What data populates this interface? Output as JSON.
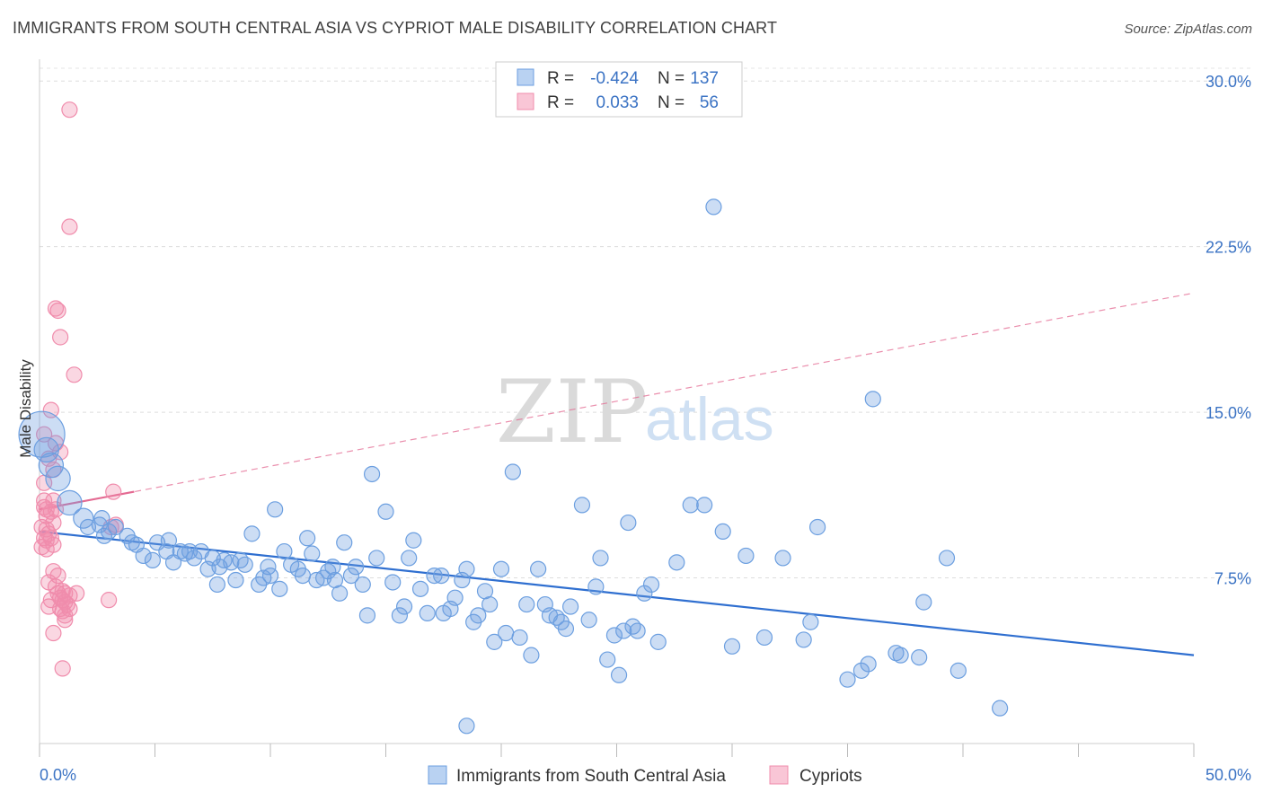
{
  "title": "IMMIGRANTS FROM SOUTH CENTRAL ASIA VS CYPRIOT MALE DISABILITY CORRELATION CHART",
  "source": "Source: ZipAtlas.com",
  "watermark": {
    "zip": "ZIP",
    "atlas": "atlas"
  },
  "colors": {
    "blue": "#6c9fe0",
    "blue_line": "#2f6fd0",
    "pink": "#f08cac",
    "pink_line": "#e46a92",
    "tick": "#3b73c4"
  },
  "legend": {
    "rows": [
      {
        "r_label": "R =",
        "r": "-0.424",
        "n_label": "N =",
        "n": "137",
        "series": "blue"
      },
      {
        "r_label": "R =",
        "r": "0.033",
        "n_label": "N =",
        "n": "56",
        "series": "pink"
      }
    ]
  },
  "bottom_legend": {
    "blue": "Immigrants from South Central Asia",
    "pink": "Cypriots"
  },
  "chart_data": {
    "type": "scatter",
    "xlabel": "",
    "ylabel": "Male Disability",
    "xlim": [
      0,
      50
    ],
    "ylim": [
      0,
      30.7
    ],
    "x_tick_labels": [
      "0.0%",
      "50.0%"
    ],
    "y_ticks": [
      7.5,
      15.0,
      22.5,
      30.0
    ],
    "y_tick_labels": [
      "7.5%",
      "15.0%",
      "22.5%",
      "30.0%"
    ],
    "series": [
      {
        "name": "Immigrants from South Central Asia",
        "color": "blue",
        "trend": {
          "x": [
            0,
            50
          ],
          "y": [
            9.6,
            4.0
          ],
          "style": "solid"
        },
        "points": [
          [
            0.1,
            14.0,
            3
          ],
          [
            0.3,
            13.3,
            1.6
          ],
          [
            0.5,
            12.6,
            1.6
          ],
          [
            0.8,
            12.0,
            1.6
          ],
          [
            1.3,
            10.9,
            1.6
          ],
          [
            1.9,
            10.2,
            1.3
          ],
          [
            2.1,
            9.8,
            1
          ],
          [
            2.6,
            9.9,
            1
          ],
          [
            2.8,
            9.4,
            1
          ],
          [
            2.7,
            10.2,
            1
          ],
          [
            3.3,
            9.8,
            1
          ],
          [
            3.8,
            9.4,
            1
          ],
          [
            4.0,
            9.1,
            1
          ],
          [
            4.2,
            9.0,
            1
          ],
          [
            4.5,
            8.5,
            1
          ],
          [
            4.9,
            8.3,
            1
          ],
          [
            5.1,
            9.1,
            1
          ],
          [
            5.5,
            8.7,
            1
          ],
          [
            5.6,
            9.2,
            1
          ],
          [
            5.8,
            8.2,
            1
          ],
          [
            6.1,
            8.7,
            1
          ],
          [
            6.3,
            8.6,
            1
          ],
          [
            6.5,
            8.7,
            1
          ],
          [
            6.7,
            8.4,
            1
          ],
          [
            7.0,
            8.7,
            1
          ],
          [
            7.3,
            7.9,
            1
          ],
          [
            7.5,
            8.4,
            1
          ],
          [
            7.8,
            8.0,
            1
          ],
          [
            8.0,
            8.3,
            1
          ],
          [
            8.3,
            8.2,
            1
          ],
          [
            8.5,
            7.4,
            1
          ],
          [
            8.7,
            8.3,
            1
          ],
          [
            8.9,
            8.1,
            1
          ],
          [
            9.2,
            9.5,
            1
          ],
          [
            9.5,
            7.2,
            1
          ],
          [
            9.7,
            7.5,
            1
          ],
          [
            10.0,
            7.6,
            1
          ],
          [
            10.2,
            10.6,
            1
          ],
          [
            10.4,
            7.0,
            1
          ],
          [
            10.6,
            8.7,
            1
          ],
          [
            10.9,
            8.1,
            1
          ],
          [
            11.2,
            7.9,
            1
          ],
          [
            11.4,
            7.6,
            1
          ],
          [
            11.6,
            9.3,
            1
          ],
          [
            11.8,
            8.6,
            1
          ],
          [
            12.0,
            7.4,
            1
          ],
          [
            12.3,
            7.5,
            1
          ],
          [
            12.5,
            7.8,
            1
          ],
          [
            12.8,
            7.4,
            1
          ],
          [
            13.0,
            6.8,
            1
          ],
          [
            13.2,
            9.1,
            1
          ],
          [
            13.5,
            7.6,
            1
          ],
          [
            13.7,
            8.0,
            1
          ],
          [
            14.0,
            7.2,
            1
          ],
          [
            14.2,
            5.8,
            1
          ],
          [
            14.4,
            12.2,
            1
          ],
          [
            14.6,
            8.4,
            1
          ],
          [
            15.0,
            10.5,
            1
          ],
          [
            15.3,
            7.3,
            1
          ],
          [
            15.6,
            5.8,
            1
          ],
          [
            15.8,
            6.2,
            1
          ],
          [
            16.0,
            8.4,
            1
          ],
          [
            16.2,
            9.2,
            1
          ],
          [
            16.5,
            7.0,
            1
          ],
          [
            16.8,
            5.9,
            1
          ],
          [
            17.1,
            7.6,
            1
          ],
          [
            17.4,
            7.6,
            1
          ],
          [
            17.8,
            6.1,
            1
          ],
          [
            18.0,
            6.6,
            1
          ],
          [
            18.3,
            7.4,
            1
          ],
          [
            18.5,
            7.9,
            1
          ],
          [
            18.8,
            5.5,
            1
          ],
          [
            19.0,
            5.8,
            1
          ],
          [
            19.3,
            6.9,
            1
          ],
          [
            19.5,
            6.3,
            1
          ],
          [
            19.7,
            4.6,
            1
          ],
          [
            20.0,
            7.9,
            1
          ],
          [
            20.2,
            5.0,
            1
          ],
          [
            20.5,
            12.3,
            1
          ],
          [
            20.8,
            4.8,
            1
          ],
          [
            21.1,
            6.3,
            1
          ],
          [
            21.3,
            4.0,
            1
          ],
          [
            21.6,
            7.9,
            1
          ],
          [
            21.9,
            6.3,
            1
          ],
          [
            22.1,
            5.8,
            1
          ],
          [
            22.4,
            5.7,
            1
          ],
          [
            22.6,
            5.5,
            1
          ],
          [
            23.0,
            6.2,
            1
          ],
          [
            23.5,
            10.8,
            1
          ],
          [
            23.8,
            5.6,
            1
          ],
          [
            24.1,
            7.1,
            1
          ],
          [
            24.3,
            8.4,
            1
          ],
          [
            24.6,
            3.8,
            1
          ],
          [
            25.1,
            3.1,
            1
          ],
          [
            25.3,
            5.1,
            1
          ],
          [
            25.5,
            10.0,
            1
          ],
          [
            25.7,
            5.3,
            1
          ],
          [
            25.9,
            5.1,
            1
          ],
          [
            26.2,
            6.8,
            1
          ],
          [
            26.5,
            7.2,
            1
          ],
          [
            26.8,
            4.6,
            1
          ],
          [
            27.6,
            8.2,
            1
          ],
          [
            28.2,
            10.8,
            1
          ],
          [
            28.8,
            10.8,
            1
          ],
          [
            29.2,
            24.3,
            1
          ],
          [
            29.6,
            9.6,
            1
          ],
          [
            30.0,
            4.4,
            1
          ],
          [
            30.6,
            8.5,
            1
          ],
          [
            31.4,
            4.8,
            1
          ],
          [
            32.2,
            8.4,
            1
          ],
          [
            33.1,
            4.7,
            1
          ],
          [
            33.4,
            5.5,
            1
          ],
          [
            33.7,
            9.8,
            1
          ],
          [
            35.0,
            2.9,
            1
          ],
          [
            35.6,
            3.3,
            1
          ],
          [
            35.9,
            3.6,
            1
          ],
          [
            36.1,
            15.6,
            1
          ],
          [
            37.1,
            4.1,
            1
          ],
          [
            37.3,
            4.0,
            1
          ],
          [
            38.1,
            3.9,
            1
          ],
          [
            38.3,
            6.4,
            1
          ],
          [
            39.3,
            8.4,
            1
          ],
          [
            39.8,
            3.3,
            1
          ],
          [
            41.6,
            1.6,
            1
          ],
          [
            18.5,
            0.8,
            1
          ],
          [
            12.7,
            8.0,
            1
          ],
          [
            17.5,
            5.9,
            1
          ],
          [
            22.8,
            5.2,
            1
          ],
          [
            24.9,
            4.9,
            1
          ],
          [
            9.9,
            8.0,
            1
          ],
          [
            3.0,
            9.6,
            1
          ],
          [
            7.7,
            7.2,
            1
          ]
        ]
      },
      {
        "name": "Cypriots",
        "color": "pink",
        "trend": {
          "x": [
            0,
            50
          ],
          "y": [
            10.6,
            20.4
          ],
          "style": "dashed",
          "solid_until_x": 4.1
        },
        "points": [
          [
            1.3,
            28.7,
            1
          ],
          [
            1.3,
            23.4,
            1
          ],
          [
            0.7,
            19.7,
            1
          ],
          [
            0.8,
            19.6,
            1
          ],
          [
            0.9,
            18.4,
            1
          ],
          [
            1.5,
            16.7,
            1
          ],
          [
            0.5,
            15.1,
            1
          ],
          [
            0.2,
            14.0,
            1
          ],
          [
            0.7,
            13.6,
            1
          ],
          [
            0.9,
            13.2,
            1
          ],
          [
            0.4,
            12.9,
            1
          ],
          [
            0.6,
            12.4,
            1
          ],
          [
            0.2,
            11.8,
            1
          ],
          [
            3.2,
            11.4,
            1
          ],
          [
            0.6,
            11.0,
            1
          ],
          [
            0.2,
            10.7,
            1
          ],
          [
            0.5,
            10.5,
            1
          ],
          [
            0.7,
            10.6,
            1
          ],
          [
            0.3,
            10.3,
            1
          ],
          [
            0.6,
            10.0,
            1
          ],
          [
            0.1,
            9.8,
            1
          ],
          [
            0.3,
            9.7,
            1
          ],
          [
            0.4,
            9.5,
            1
          ],
          [
            0.2,
            9.3,
            1
          ],
          [
            0.3,
            9.2,
            1
          ],
          [
            0.1,
            8.9,
            1
          ],
          [
            0.3,
            8.8,
            1
          ],
          [
            0.5,
            9.3,
            1
          ],
          [
            0.6,
            9.0,
            1
          ],
          [
            3.3,
            9.9,
            1
          ],
          [
            3.1,
            9.8,
            1
          ],
          [
            0.6,
            7.8,
            1
          ],
          [
            0.8,
            7.6,
            1
          ],
          [
            0.4,
            7.3,
            1
          ],
          [
            0.7,
            7.1,
            1
          ],
          [
            1.0,
            6.9,
            1
          ],
          [
            1.1,
            6.8,
            1
          ],
          [
            1.3,
            6.7,
            1
          ],
          [
            0.9,
            6.6,
            1
          ],
          [
            1.0,
            6.5,
            1
          ],
          [
            0.5,
            6.5,
            1
          ],
          [
            1.1,
            6.4,
            1
          ],
          [
            1.2,
            6.3,
            1
          ],
          [
            0.4,
            6.2,
            1
          ],
          [
            0.9,
            6.1,
            1
          ],
          [
            1.0,
            6.0,
            1
          ],
          [
            1.1,
            5.8,
            1
          ],
          [
            1.3,
            6.1,
            1
          ],
          [
            0.6,
            5.0,
            1
          ],
          [
            1.6,
            6.8,
            1
          ],
          [
            3.0,
            6.5,
            1
          ],
          [
            1.1,
            5.6,
            1
          ],
          [
            1.0,
            3.4,
            1
          ],
          [
            0.2,
            11.0,
            1
          ],
          [
            0.3,
            10.6,
            1
          ],
          [
            0.8,
            6.8,
            1
          ]
        ]
      }
    ]
  }
}
